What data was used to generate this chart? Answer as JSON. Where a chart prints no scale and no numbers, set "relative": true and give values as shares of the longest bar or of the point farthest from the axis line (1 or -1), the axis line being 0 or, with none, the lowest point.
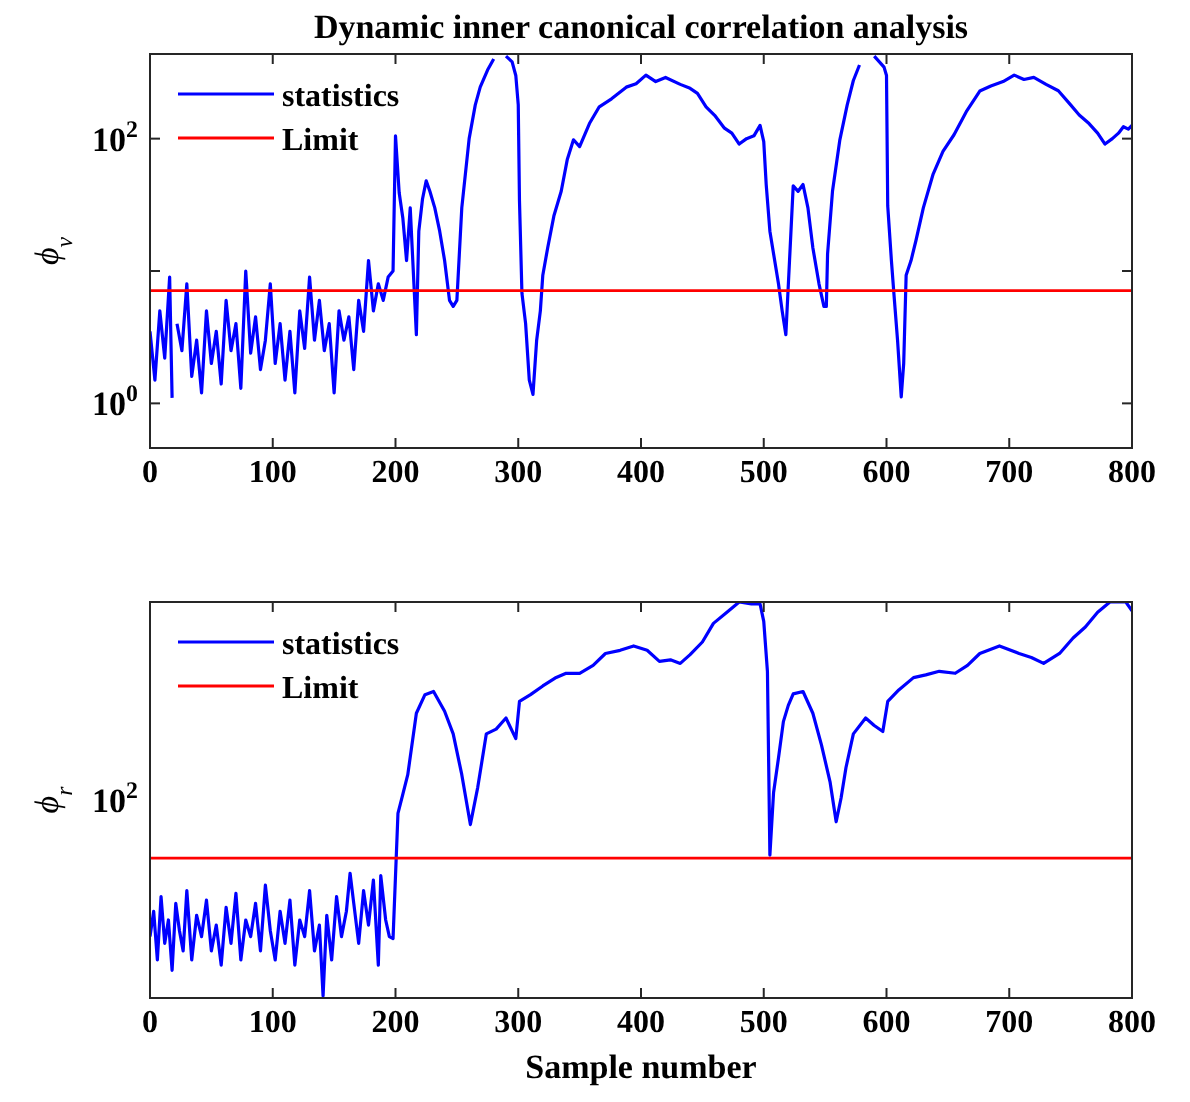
{
  "chart_data": [
    {
      "type": "line",
      "title": "Dynamic inner canonical correlation analysis",
      "ylabel": "ϕ$_{v}$",
      "log": "y",
      "xlim": [
        0,
        800
      ],
      "xticks": [
        0,
        100,
        200,
        300,
        400,
        500,
        600,
        700,
        800
      ],
      "ylim": [
        0.46,
        436
      ],
      "yticks": [
        {
          "value": 1,
          "label": "10$^{0}$"
        },
        {
          "value": 10,
          "label": null
        },
        {
          "value": 100,
          "label": "10$^{2}$"
        }
      ],
      "grid": false,
      "legend": "top left",
      "line_style": "solid",
      "marker": "none",
      "tick_labels": "xy",
      "series": [
        {
          "name": "statistics",
          "color": "#0000ff",
          "x": [
            0,
            4,
            8,
            12,
            16,
            18,
            20,
            22,
            26,
            30,
            34,
            38,
            42,
            46,
            50,
            54,
            58,
            62,
            66,
            70,
            74,
            78,
            82,
            86,
            90,
            94,
            98,
            102,
            106,
            110,
            114,
            118,
            122,
            126,
            130,
            134,
            138,
            142,
            146,
            150,
            154,
            158,
            162,
            166,
            170,
            174,
            178,
            182,
            186,
            190,
            194,
            198,
            200,
            203,
            206,
            209,
            212,
            215,
            217,
            219,
            222,
            225,
            228,
            232,
            236,
            240,
            244,
            247,
            250,
            254,
            260,
            265,
            269,
            275,
            280,
            285,
            290,
            295,
            298,
            300,
            301,
            303,
            306,
            309,
            312,
            315,
            318,
            320,
            324,
            329,
            335,
            340,
            345,
            350,
            358,
            366,
            376,
            388,
            396,
            404,
            412,
            420,
            432,
            440,
            446,
            453,
            460,
            468,
            474,
            480,
            486,
            492,
            497,
            500,
            502,
            505,
            508,
            512,
            515,
            518,
            521,
            524,
            528,
            532,
            536,
            540,
            545,
            549,
            551,
            552,
            556,
            562,
            568,
            573,
            578,
            583,
            590,
            598,
            600,
            601,
            604,
            606,
            609,
            612,
            614,
            616,
            620,
            624,
            630,
            638,
            646,
            655,
            665,
            676,
            685,
            695,
            704,
            712,
            720,
            730,
            740,
            750,
            757,
            765,
            772,
            778,
            784,
            789,
            793,
            797,
            800
          ],
          "values": [
            3.5,
            1.5,
            5,
            2.2,
            9,
            1.1,
            null,
            4,
            2.5,
            8,
            1.6,
            3,
            1.2,
            5,
            2,
            3.5,
            1.4,
            6,
            2.5,
            4,
            1.3,
            10,
            2.4,
            4.5,
            1.8,
            3,
            8,
            2,
            4,
            1.5,
            3.5,
            1.2,
            5,
            2.6,
            9,
            3,
            6,
            2.5,
            4,
            1.2,
            5,
            3,
            4.5,
            1.8,
            6,
            3.5,
            12,
            5,
            8,
            6,
            9,
            10,
            105,
            39,
            25,
            12,
            30,
            8,
            3.3,
            20,
            35,
            48,
            40,
            30,
            20,
            12,
            6,
            5.4,
            6,
            30,
            100,
            180,
            245,
            330,
            400,
            null,
            420,
            380,
            300,
            180,
            34,
            6.8,
            4,
            1.5,
            1.17,
            3,
            5,
            9.3,
            15,
            26,
            40,
            70,
            98,
            87,
            130,
            174,
            200,
            245,
            260,
            302,
            270,
            290,
            257,
            240,
            220,
            174,
            150,
            120,
            110,
            91,
            100,
            105,
            126,
            95,
            45,
            20,
            13.5,
            8,
            5,
            3.3,
            12,
            44,
            40,
            45,
            30,
            15,
            8,
            5.4,
            5.4,
            13.5,
            40,
            98,
            180,
            275,
            360,
            null,
            420,
            347,
            300,
            31,
            12,
            6.8,
            3,
            1.12,
            2,
            9.3,
            12,
            17,
            30,
            54,
            80,
            107,
            160,
            229,
            250,
            270,
            302,
            280,
            290,
            257,
            230,
            180,
            151,
            130,
            110,
            91,
            100,
            110,
            123,
            118,
            126
          ]
        }
      ],
      "ref_lines": [
        {
          "axis": "y",
          "value": 7.1,
          "label": "Limit",
          "color": "#ff0000"
        }
      ]
    },
    {
      "type": "line",
      "xlabel": "Sample number",
      "ylabel": "ϕ$_{r}$",
      "relative": true,
      "xlim": [
        0,
        800
      ],
      "xticks": [
        0,
        100,
        200,
        300,
        400,
        500,
        600,
        700,
        800
      ],
      "grid": false,
      "legend": "top left",
      "line_style": "solid",
      "marker": "none",
      "tick_labels": "x",
      "annotations": [
        "10$^{2}$"
      ],
      "series": [
        {
          "name": "statistics",
          "color": "#0000ff",
          "x": [
            0,
            3,
            6,
            9,
            12,
            15,
            18,
            21,
            24,
            27,
            30,
            34,
            38,
            42,
            46,
            50,
            54,
            58,
            62,
            66,
            70,
            74,
            78,
            82,
            86,
            90,
            94,
            98,
            102,
            106,
            110,
            114,
            118,
            122,
            126,
            130,
            134,
            138,
            141,
            144,
            148,
            152,
            156,
            160,
            163,
            166,
            170,
            174,
            178,
            182,
            186,
            188,
            192,
            195,
            198,
            202,
            206,
            210,
            217,
            224,
            231,
            240,
            247,
            254,
            261,
            267,
            274,
            282,
            290,
            298,
            301,
            310,
            320,
            330,
            339,
            350,
            361,
            371,
            383,
            394,
            405,
            415,
            424,
            432,
            440,
            450,
            459,
            470,
            480,
            490,
            497,
            500,
            503,
            505,
            508,
            512,
            516,
            520,
            524,
            532,
            540,
            547,
            554,
            559,
            563,
            567,
            573,
            583,
            590,
            597,
            601,
            610,
            622,
            632,
            643,
            656,
            666,
            676,
            692,
            708,
            718,
            728,
            741,
            752,
            762,
            772,
            782,
            795,
            800
          ],
          "values": [
            0.155,
            0.219,
            0.096,
            0.256,
            0.138,
            0.197,
            0.07,
            0.239,
            0.17,
            0.119,
            0.271,
            0.096,
            0.209,
            0.155,
            0.247,
            0.119,
            0.184,
            0.083,
            0.229,
            0.138,
            0.264,
            0.096,
            0.197,
            0.155,
            0.239,
            0.119,
            0.285,
            0.17,
            0.096,
            0.219,
            0.138,
            0.247,
            0.083,
            0.197,
            0.155,
            0.271,
            0.119,
            0.184,
            0.005,
            0.209,
            0.096,
            0.256,
            0.155,
            0.219,
            0.315,
            0.239,
            0.138,
            0.271,
            0.184,
            0.298,
            0.083,
            0.309,
            0.197,
            0.155,
            0.15,
            0.466,
            0.515,
            0.564,
            0.719,
            0.766,
            0.774,
            0.724,
            0.667,
            0.564,
            0.438,
            0.532,
            0.667,
            0.679,
            0.707,
            0.655,
            0.749,
            0.766,
            0.788,
            0.808,
            0.82,
            0.82,
            0.84,
            0.87,
            0.878,
            0.889,
            0.878,
            0.85,
            0.854,
            0.845,
            0.867,
            0.899,
            0.946,
            0.974,
            1,
            0.995,
            0.995,
            0.951,
            0.825,
            0.361,
            0.519,
            0.606,
            0.698,
            0.739,
            0.768,
            0.774,
            0.719,
            0.639,
            0.546,
            0.445,
            0.505,
            0.582,
            0.667,
            0.707,
            0.688,
            0.673,
            0.749,
            0.778,
            0.809,
            0.816,
            0.825,
            0.82,
            0.84,
            0.87,
            0.889,
            0.87,
            0.86,
            0.845,
            0.87,
            0.909,
            0.937,
            0.974,
            1,
            1,
            0.978
          ]
        }
      ],
      "ref_lines": [
        {
          "axis": "y",
          "value": 0.353,
          "label": "Limit",
          "color": "#ff0000"
        }
      ]
    }
  ]
}
